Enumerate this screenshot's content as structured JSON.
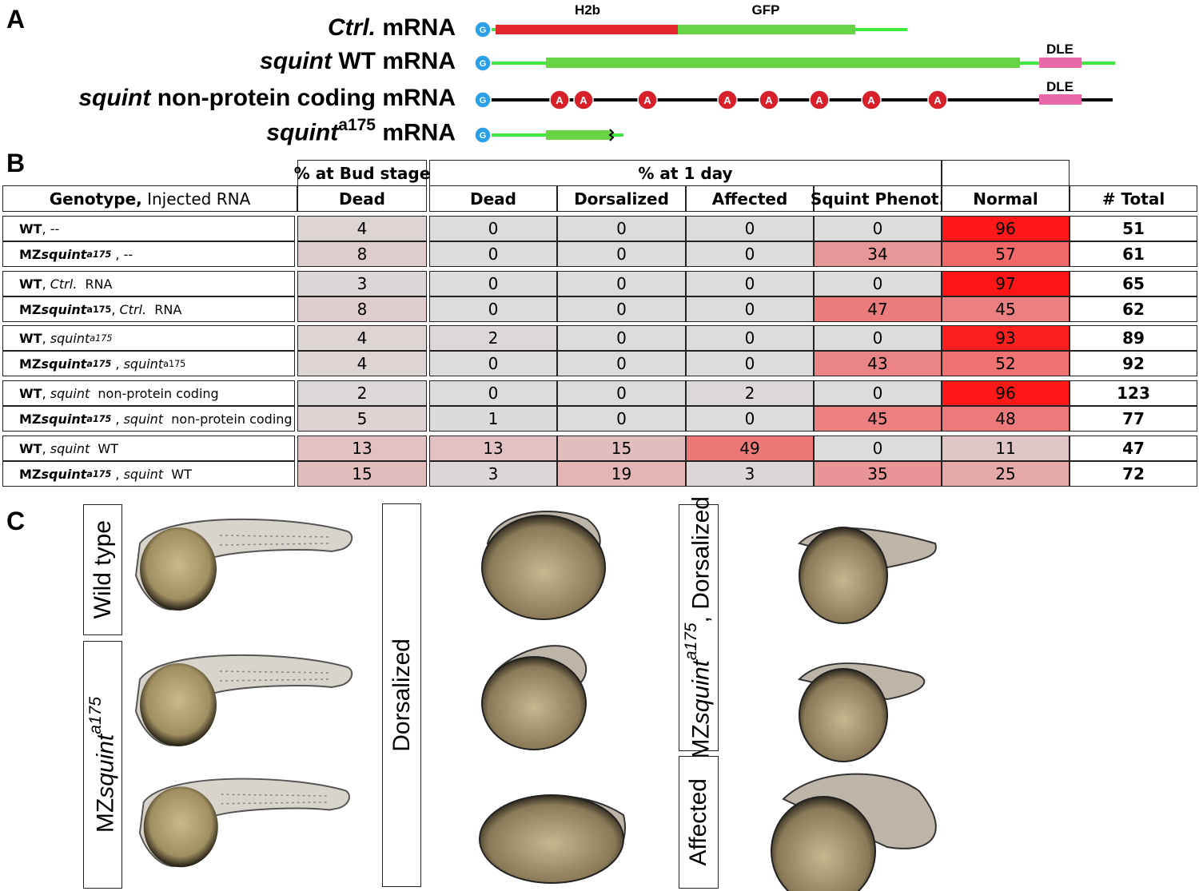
{
  "panel_labels": [
    "A",
    "B",
    "C"
  ],
  "panel_a": {
    "constructs": [
      {
        "label": [
          {
            "t": "Ctrl.",
            "s": "i"
          },
          {
            "t": " mRNA",
            "s": ""
          }
        ],
        "cap": "G",
        "features": [
          "H2b",
          "GFP"
        ]
      },
      {
        "label": [
          {
            "t": "squint",
            "s": "i"
          },
          {
            "t": " WT mRNA",
            "s": ""
          }
        ],
        "cap": "G",
        "features": [
          "DLE"
        ]
      },
      {
        "label": [
          {
            "t": "squint",
            "s": "i"
          },
          {
            "t": " non-protein coding mRNA",
            "s": ""
          }
        ],
        "cap": "G",
        "features": [
          "DLE"
        ],
        "mutations": [
          "A",
          "A",
          "A",
          "A",
          "A",
          "A",
          "A",
          "A"
        ]
      },
      {
        "label": [
          {
            "t": "squint",
            "s": "i"
          },
          {
            "t": "a175",
            "s": "sup"
          },
          {
            "t": " mRNA",
            "s": ""
          }
        ],
        "cap": "G",
        "features": []
      }
    ]
  },
  "table": {
    "group_headers": [
      "% at Bud stage",
      "% at 1 day"
    ],
    "columns": [
      [
        {
          "t": "Genotype,",
          "s": "b"
        },
        {
          "t": " Injected RNA",
          "s": ""
        }
      ],
      [
        {
          "t": "Dead",
          "s": "b"
        }
      ],
      [
        {
          "t": "Dead",
          "s": "b"
        }
      ],
      [
        {
          "t": "Dorsalized",
          "s": "b"
        }
      ],
      [
        {
          "t": "Affected",
          "s": "b"
        }
      ],
      [
        {
          "t": "Squint Phenot.",
          "s": "b"
        }
      ],
      [
        {
          "t": "Normal",
          "s": "b"
        }
      ],
      [
        {
          "t": "# Total",
          "s": "b"
        }
      ]
    ],
    "heatmap": {
      "low": "#dcdcdc",
      "high": "#ff1010"
    },
    "rows": [
      {
        "genotype": [
          {
            "t": "WT",
            "s": "b"
          },
          {
            "t": ", --",
            "s": ""
          }
        ],
        "values": [
          4,
          0,
          0,
          0,
          0,
          96,
          51
        ]
      },
      {
        "genotype": [
          {
            "t": "MZ",
            "s": "b"
          },
          {
            "t": "squint",
            "s": "bi"
          },
          {
            "t": "a175",
            "s": "sup-bi"
          },
          {
            "t": " , --",
            "s": ""
          }
        ],
        "values": [
          8,
          0,
          0,
          0,
          34,
          57,
          61
        ]
      },
      {
        "genotype": [
          {
            "t": "WT",
            "s": "b"
          },
          {
            "t": ", ",
            "s": ""
          },
          {
            "t": "Ctrl.",
            "s": "i"
          },
          {
            "t": "  RNA",
            "s": ""
          }
        ],
        "values": [
          3,
          0,
          0,
          0,
          0,
          97,
          65
        ]
      },
      {
        "genotype": [
          {
            "t": "MZ",
            "s": "b"
          },
          {
            "t": "squint",
            "s": "bi"
          },
          {
            "t": "a175",
            "s": "sup-b"
          },
          {
            "t": ", ",
            "s": ""
          },
          {
            "t": "Ctrl.",
            "s": "i"
          },
          {
            "t": "  RNA",
            "s": ""
          }
        ],
        "values": [
          8,
          0,
          0,
          0,
          47,
          45,
          62
        ]
      },
      {
        "genotype": [
          {
            "t": "WT",
            "s": "b"
          },
          {
            "t": ", ",
            "s": ""
          },
          {
            "t": "squint",
            "s": "i"
          },
          {
            "t": "a175",
            "s": "sup-i"
          }
        ],
        "values": [
          4,
          2,
          0,
          0,
          0,
          93,
          89
        ]
      },
      {
        "genotype": [
          {
            "t": "MZ",
            "s": "b"
          },
          {
            "t": "squint",
            "s": "bi"
          },
          {
            "t": "a175",
            "s": "sup-bi"
          },
          {
            "t": " , ",
            "s": ""
          },
          {
            "t": "squint",
            "s": "i"
          },
          {
            "t": "a175",
            "s": "sup"
          }
        ],
        "values": [
          4,
          0,
          0,
          0,
          43,
          52,
          92
        ]
      },
      {
        "genotype": [
          {
            "t": "WT",
            "s": "b"
          },
          {
            "t": ", ",
            "s": ""
          },
          {
            "t": "squint",
            "s": "i"
          },
          {
            "t": "  non-protein coding",
            "s": ""
          }
        ],
        "values": [
          2,
          0,
          0,
          2,
          0,
          96,
          123
        ]
      },
      {
        "genotype": [
          {
            "t": "MZ",
            "s": "b"
          },
          {
            "t": "squint",
            "s": "bi"
          },
          {
            "t": "a175",
            "s": "sup-bi"
          },
          {
            "t": " , ",
            "s": ""
          },
          {
            "t": "squint",
            "s": "i"
          },
          {
            "t": "  non-protein coding",
            "s": ""
          }
        ],
        "values": [
          5,
          1,
          0,
          0,
          45,
          48,
          77
        ]
      },
      {
        "genotype": [
          {
            "t": "WT",
            "s": "b"
          },
          {
            "t": ", ",
            "s": ""
          },
          {
            "t": "squint",
            "s": "i"
          },
          {
            "t": "  WT",
            "s": ""
          }
        ],
        "values": [
          13,
          13,
          15,
          49,
          0,
          11,
          47
        ]
      },
      {
        "genotype": [
          {
            "t": "MZ",
            "s": "b"
          },
          {
            "t": "squint",
            "s": "bi"
          },
          {
            "t": "a175",
            "s": "sup-bi"
          },
          {
            "t": " , ",
            "s": ""
          },
          {
            "t": "squint",
            "s": "i"
          },
          {
            "t": "  WT",
            "s": ""
          }
        ],
        "values": [
          15,
          3,
          19,
          3,
          35,
          25,
          72
        ]
      }
    ]
  },
  "panel_c": {
    "labels": [
      [
        {
          "t": "Wild type",
          "s": ""
        }
      ],
      [
        {
          "t": "MZ",
          "s": ""
        },
        {
          "t": "squint",
          "s": "i"
        },
        {
          "t": "a175",
          "s": "sup-i"
        }
      ],
      [
        {
          "t": "Dorsalized",
          "s": ""
        }
      ],
      [
        {
          "t": "MZ",
          "s": ""
        },
        {
          "t": "squint",
          "s": "i"
        },
        {
          "t": "a175",
          "s": "sup-i"
        },
        {
          "t": ", Dorsalized",
          "s": ""
        }
      ],
      [
        {
          "t": "Affected",
          "s": ""
        }
      ]
    ]
  }
}
